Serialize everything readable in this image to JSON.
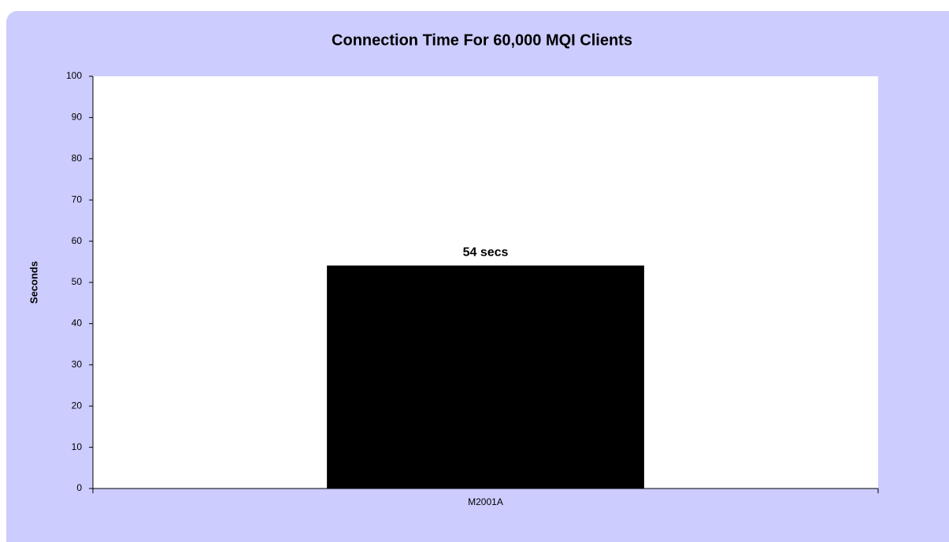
{
  "chart_data": {
    "type": "bar",
    "title": "Connection Time For 60,000 MQI Clients",
    "y_label": "Seconds",
    "categories": [
      "M2001A"
    ],
    "values": [
      54
    ],
    "value_labels": [
      "54 secs"
    ],
    "color": "#000000",
    "ylim": [
      0,
      100
    ],
    "yticks": [
      0,
      10,
      20,
      30,
      40,
      50,
      60,
      70,
      80,
      90,
      100
    ],
    "grid": false
  }
}
